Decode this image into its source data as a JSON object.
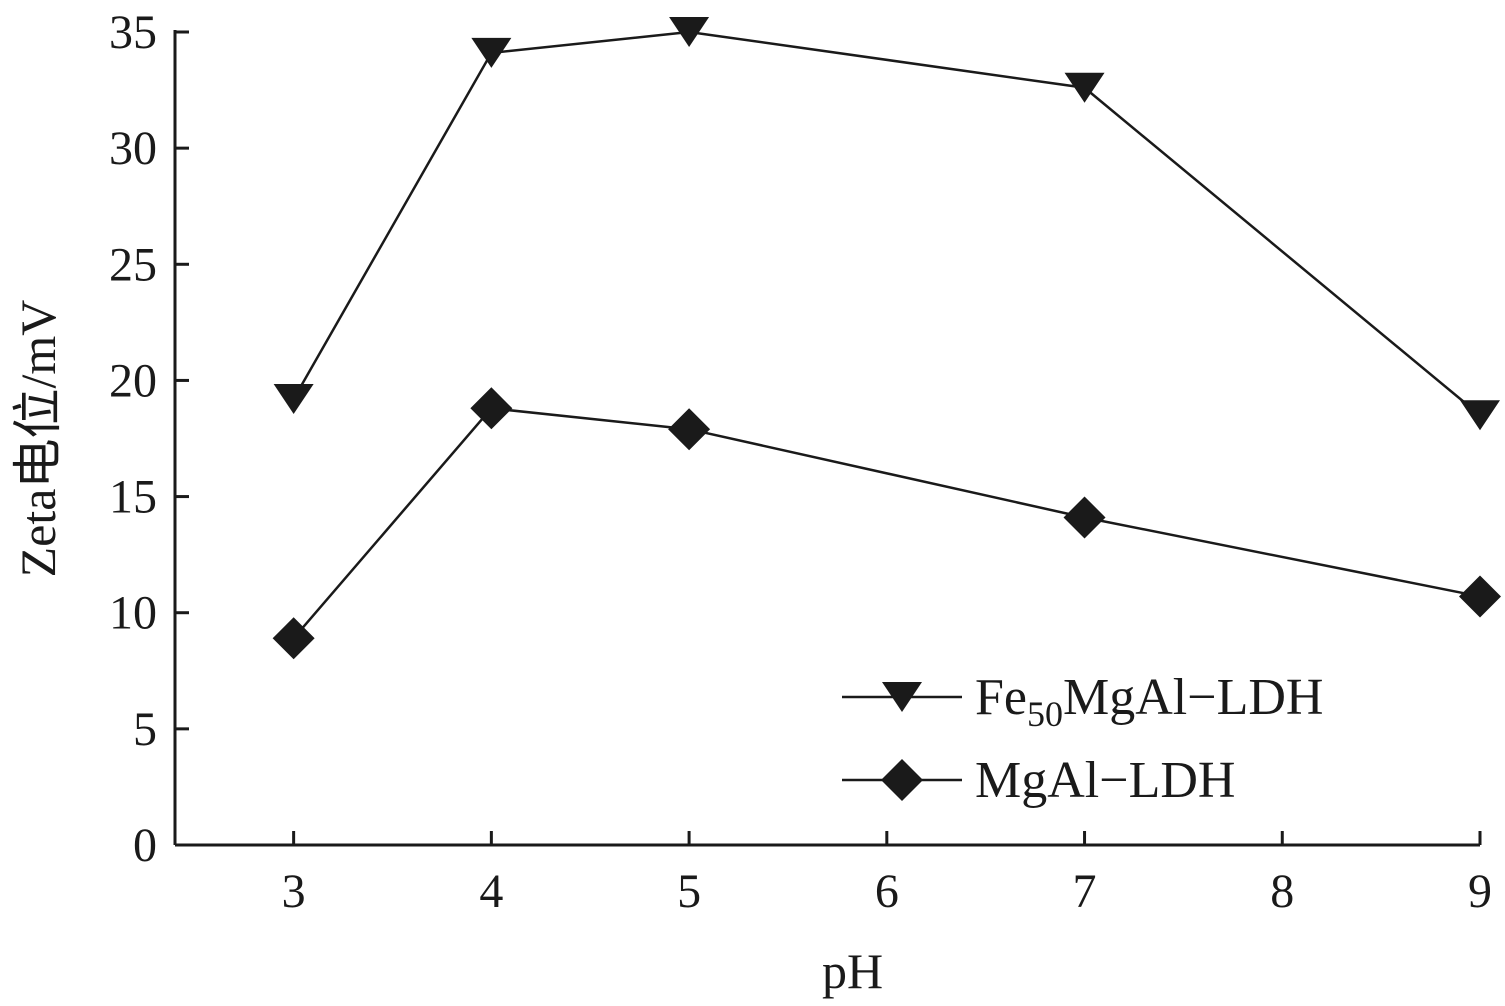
{
  "chart_data": {
    "type": "line",
    "xlabel": "pH",
    "ylabel": "Zeta电位/mV",
    "xlim": [
      2.4,
      9
    ],
    "ylim": [
      0,
      35
    ],
    "xticks": [
      3,
      4,
      5,
      6,
      7,
      8,
      9
    ],
    "yticks": [
      0,
      5,
      10,
      15,
      20,
      25,
      30,
      35
    ],
    "grid": false,
    "legend_position": "bottom-right",
    "series": [
      {
        "name": "Fe50MgAl−LDH",
        "legend_parts": {
          "base": "Fe",
          "sub": "50",
          "rest": "MgAl−LDH"
        },
        "marker": "triangle-down",
        "color": "#1a1a1a",
        "points": [
          {
            "x": 3,
            "y": 19.2
          },
          {
            "x": 4,
            "y": 34.1
          },
          {
            "x": 5,
            "y": 35.0
          },
          {
            "x": 7,
            "y": 32.6
          },
          {
            "x": 9,
            "y": 18.5
          }
        ]
      },
      {
        "name": "MgAl−LDH",
        "legend_parts": {
          "base": "MgAl−LDH",
          "sub": "",
          "rest": ""
        },
        "marker": "diamond",
        "color": "#1a1a1a",
        "points": [
          {
            "x": 3,
            "y": 8.9
          },
          {
            "x": 4,
            "y": 18.8
          },
          {
            "x": 5,
            "y": 17.9
          },
          {
            "x": 7,
            "y": 14.1
          },
          {
            "x": 9,
            "y": 10.7
          }
        ]
      }
    ]
  }
}
